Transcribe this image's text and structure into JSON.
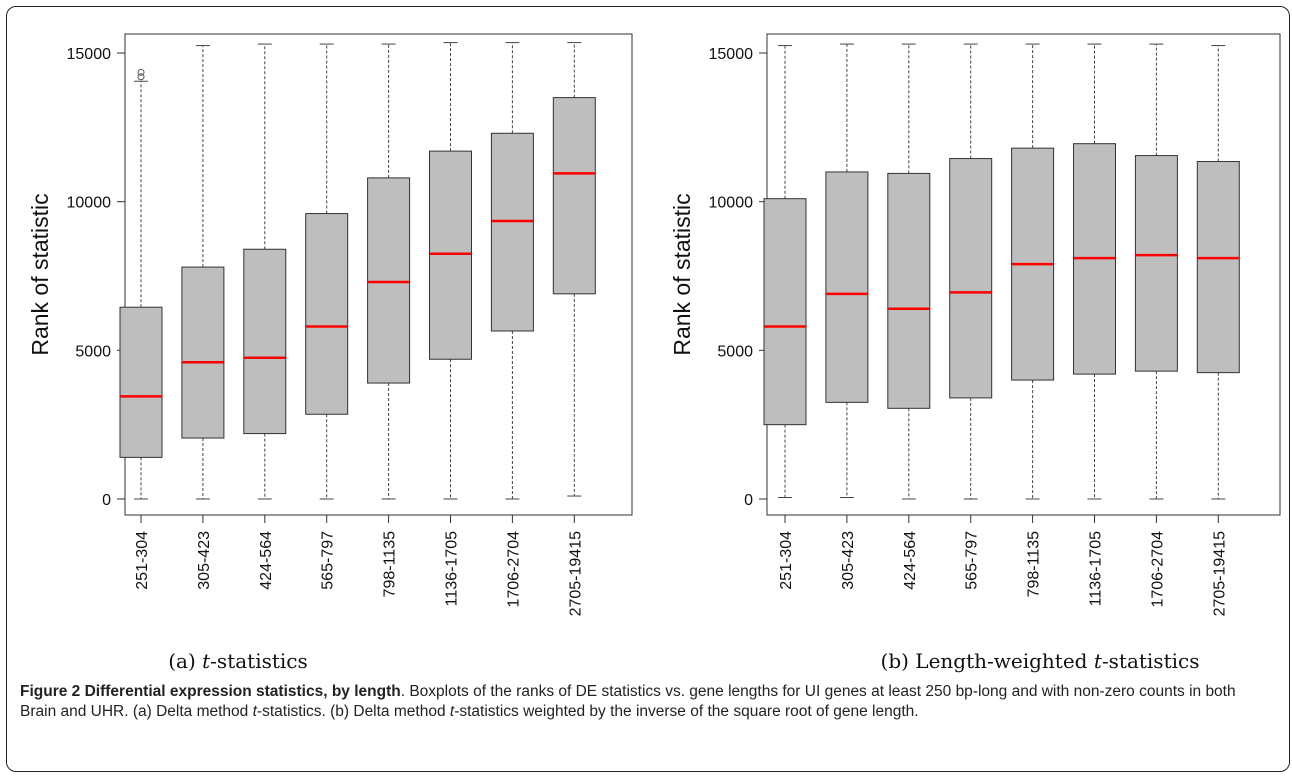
{
  "chart_data": [
    {
      "type": "boxplot",
      "subcaption_label": "(a)",
      "subcaption_italic": "t",
      "subcaption_rest": "-statistics",
      "ylabel": "Rank of statistic",
      "ylim": [
        0,
        15000
      ],
      "yticks": [
        0,
        5000,
        10000,
        15000
      ],
      "categories": [
        "251-304",
        "305-423",
        "424-564",
        "565-797",
        "798-1135",
        "1136-1705",
        "1706-2704",
        "2705-19415"
      ],
      "boxes": [
        {
          "min": 0,
          "q1": 1400,
          "median": 3450,
          "q3": 6450,
          "max": 14050,
          "outliers": [
            14200,
            14350
          ]
        },
        {
          "min": 0,
          "q1": 2050,
          "median": 4600,
          "q3": 7800,
          "max": 15250,
          "outliers": []
        },
        {
          "min": 0,
          "q1": 2200,
          "median": 4750,
          "q3": 8400,
          "max": 15300,
          "outliers": []
        },
        {
          "min": 0,
          "q1": 2850,
          "median": 5800,
          "q3": 9600,
          "max": 15300,
          "outliers": []
        },
        {
          "min": 0,
          "q1": 3900,
          "median": 7300,
          "q3": 10800,
          "max": 15300,
          "outliers": []
        },
        {
          "min": 0,
          "q1": 4700,
          "median": 8250,
          "q3": 11700,
          "max": 15350,
          "outliers": []
        },
        {
          "min": 0,
          "q1": 5650,
          "median": 9350,
          "q3": 12300,
          "max": 15350,
          "outliers": []
        },
        {
          "min": 100,
          "q1": 6900,
          "median": 10950,
          "q3": 13500,
          "max": 15350,
          "outliers": []
        }
      ],
      "colors": {
        "box": "#bebebe",
        "median": "#ff0000"
      }
    },
    {
      "type": "boxplot",
      "subcaption_label": "(b) Length-weighted",
      "subcaption_italic": "t",
      "subcaption_rest": "-statistics",
      "ylabel": "Rank of statistic",
      "ylim": [
        0,
        15000
      ],
      "yticks": [
        0,
        5000,
        10000,
        15000
      ],
      "categories": [
        "251-304",
        "305-423",
        "424-564",
        "565-797",
        "798-1135",
        "1136-1705",
        "1706-2704",
        "2705-19415"
      ],
      "boxes": [
        {
          "min": 50,
          "q1": 2500,
          "median": 5800,
          "q3": 10100,
          "max": 15250,
          "outliers": []
        },
        {
          "min": 50,
          "q1": 3250,
          "median": 6900,
          "q3": 11000,
          "max": 15300,
          "outliers": []
        },
        {
          "min": 0,
          "q1": 3050,
          "median": 6400,
          "q3": 10950,
          "max": 15300,
          "outliers": []
        },
        {
          "min": 0,
          "q1": 3400,
          "median": 6950,
          "q3": 11450,
          "max": 15300,
          "outliers": []
        },
        {
          "min": 0,
          "q1": 4000,
          "median": 7900,
          "q3": 11800,
          "max": 15300,
          "outliers": []
        },
        {
          "min": 0,
          "q1": 4200,
          "median": 8100,
          "q3": 11950,
          "max": 15300,
          "outliers": []
        },
        {
          "min": 0,
          "q1": 4300,
          "median": 8200,
          "q3": 11550,
          "max": 15300,
          "outliers": []
        },
        {
          "min": 0,
          "q1": 4250,
          "median": 8100,
          "q3": 11350,
          "max": 15250,
          "outliers": []
        }
      ],
      "colors": {
        "box": "#bebebe",
        "median": "#ff0000"
      }
    }
  ],
  "caption": {
    "bold": "Figure 2 Differential expression statistics, by length",
    "text1": ". Boxplots of the ranks of DE statistics vs. gene lengths for UI genes at least 250 bp-long and with non-zero counts in both Brain and UHR. (a) Delta method ",
    "italic1": "t",
    "text2": "-statistics. (b) Delta method ",
    "italic2": "t",
    "text3": "-statistics weighted by the inverse of the square root of gene length."
  }
}
